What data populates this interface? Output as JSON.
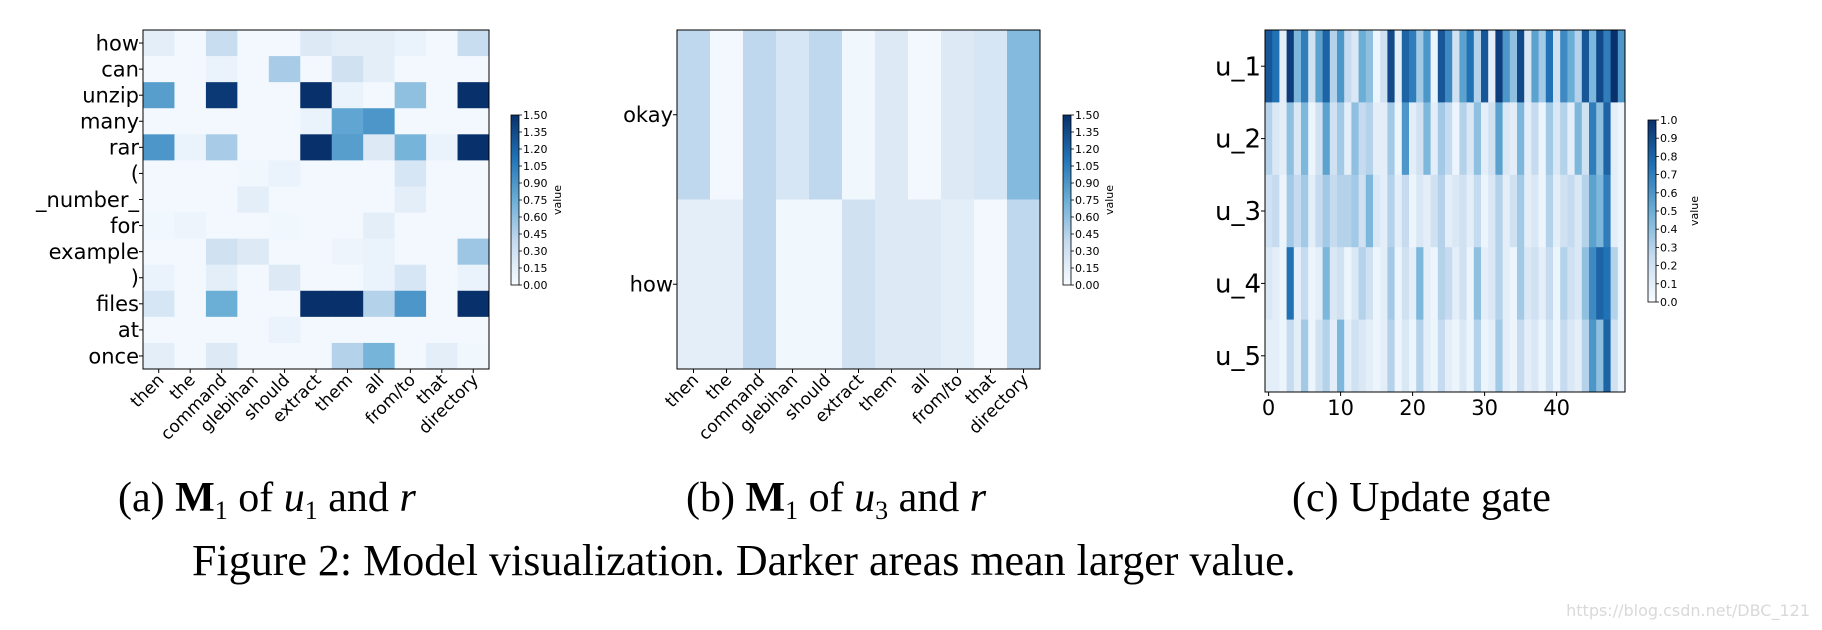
{
  "colors": {
    "low": "#f7fbff",
    "high": "#08306b"
  },
  "figure_caption": "Figure 2: Model visualization. Darker areas mean larger value.",
  "subcaptions": {
    "a": {
      "tag": "(a)",
      "M": "M",
      "sub1": "1",
      "of": "of",
      "u": "u",
      "sub2": "1",
      "and": "and",
      "r": "r"
    },
    "b": {
      "tag": "(b)",
      "M": "M",
      "sub1": "1",
      "of": "of",
      "u": "u",
      "sub2": "3",
      "and": "and",
      "r": "r"
    },
    "c": {
      "tag": "(c)",
      "text": "Update gate"
    }
  },
  "watermark": "https://blog.csdn.net/DBC_121",
  "chart_data": [
    {
      "type": "heatmap",
      "title": "",
      "rows": [
        "how",
        "can",
        "unzip",
        "many",
        "rar",
        "(",
        "_number_",
        "for",
        "example",
        ")",
        "files",
        "at",
        "once"
      ],
      "cols": [
        "then",
        "the",
        "command",
        "glebihan",
        "should",
        "extract",
        "them",
        "all",
        "from/to",
        "that",
        "directory"
      ],
      "values": [
        [
          0.15,
          0.03,
          0.35,
          0.03,
          0.03,
          0.2,
          0.15,
          0.15,
          0.1,
          0.03,
          0.35
        ],
        [
          0.03,
          0.03,
          0.1,
          0.03,
          0.5,
          0.03,
          0.3,
          0.15,
          0.03,
          0.03,
          0.03
        ],
        [
          0.85,
          0.03,
          1.45,
          0.03,
          0.03,
          1.5,
          0.1,
          0.03,
          0.6,
          0.03,
          1.5
        ],
        [
          0.03,
          0.03,
          0.03,
          0.03,
          0.03,
          0.1,
          0.8,
          0.9,
          0.03,
          0.03,
          0.03
        ],
        [
          0.9,
          0.1,
          0.5,
          0.03,
          0.03,
          1.5,
          0.85,
          0.2,
          0.7,
          0.1,
          1.5
        ],
        [
          0.03,
          0.03,
          0.03,
          0.05,
          0.1,
          0.03,
          0.03,
          0.03,
          0.25,
          0.03,
          0.03
        ],
        [
          0.03,
          0.03,
          0.03,
          0.15,
          0.03,
          0.03,
          0.03,
          0.03,
          0.15,
          0.03,
          0.03
        ],
        [
          0.05,
          0.08,
          0.03,
          0.03,
          0.05,
          0.03,
          0.03,
          0.15,
          0.03,
          0.03,
          0.03
        ],
        [
          0.03,
          0.03,
          0.3,
          0.2,
          0.03,
          0.03,
          0.08,
          0.1,
          0.03,
          0.03,
          0.55
        ],
        [
          0.1,
          0.03,
          0.15,
          0.03,
          0.2,
          0.03,
          0.03,
          0.1,
          0.25,
          0.03,
          0.1
        ],
        [
          0.25,
          0.03,
          0.75,
          0.03,
          0.03,
          1.5,
          1.5,
          0.45,
          0.9,
          0.03,
          1.5
        ],
        [
          0.03,
          0.03,
          0.03,
          0.03,
          0.1,
          0.03,
          0.03,
          0.03,
          0.03,
          0.03,
          0.03
        ],
        [
          0.15,
          0.03,
          0.2,
          0.03,
          0.03,
          0.03,
          0.45,
          0.7,
          0.03,
          0.15,
          0.05
        ]
      ],
      "colorbar": {
        "label": "value",
        "ticks": [
          "0.00",
          "0.15",
          "0.30",
          "0.45",
          "0.60",
          "0.75",
          "0.90",
          "1.05",
          "1.20",
          "1.35",
          "1.50"
        ],
        "min": 0,
        "max": 1.5
      }
    },
    {
      "type": "heatmap",
      "title": "",
      "rows": [
        "okay",
        "how"
      ],
      "cols": [
        "then",
        "the",
        "command",
        "glebihan",
        "should",
        "extract",
        "them",
        "all",
        "from/to",
        "that",
        "directory"
      ],
      "values": [
        [
          0.4,
          0.03,
          0.4,
          0.25,
          0.4,
          0.05,
          0.2,
          0.03,
          0.2,
          0.25,
          0.65
        ],
        [
          0.15,
          0.15,
          0.4,
          0.05,
          0.05,
          0.3,
          0.2,
          0.2,
          0.15,
          0.03,
          0.4
        ]
      ],
      "colorbar": {
        "label": "value",
        "ticks": [
          "0.00",
          "0.15",
          "0.30",
          "0.45",
          "0.60",
          "0.75",
          "0.90",
          "1.05",
          "1.20",
          "1.35",
          "1.50"
        ],
        "min": 0,
        "max": 1.5
      }
    },
    {
      "type": "heatmap",
      "title": "",
      "rows": [
        "u_1",
        "u_2",
        "u_3",
        "u_4",
        "u_5"
      ],
      "x_ticks": [
        "0",
        "10",
        "20",
        "30",
        "40"
      ],
      "n_cols": 50,
      "values": [
        [
          0.85,
          0.75,
          0.1,
          0.95,
          0.45,
          0.7,
          0.2,
          0.55,
          0.8,
          0.3,
          0.6,
          0.25,
          0.15,
          0.5,
          0.4,
          0.05,
          0.2,
          0.9,
          0.1,
          0.8,
          0.7,
          0.35,
          0.6,
          0.05,
          0.85,
          0.65,
          0.2,
          0.55,
          0.75,
          0.3,
          0.85,
          0.1,
          0.95,
          0.6,
          0.4,
          0.9,
          0.15,
          0.55,
          0.35,
          0.75,
          0.2,
          0.65,
          0.5,
          0.3,
          0.85,
          0.45,
          0.9,
          0.7,
          1.0,
          0.6
        ],
        [
          0.3,
          0.15,
          0.1,
          0.4,
          0.15,
          0.45,
          0.05,
          0.2,
          0.55,
          0.2,
          0.35,
          0.1,
          0.4,
          0.25,
          0.3,
          0.1,
          0.1,
          0.35,
          0.05,
          0.6,
          0.1,
          0.2,
          0.45,
          0.1,
          0.35,
          0.25,
          0.05,
          0.3,
          0.15,
          0.4,
          0.1,
          0.2,
          0.55,
          0.15,
          0.1,
          0.45,
          0.1,
          0.25,
          0.05,
          0.35,
          0.15,
          0.3,
          0.1,
          0.45,
          0.2,
          0.7,
          0.4,
          0.8,
          0.1,
          0.05
        ],
        [
          0.2,
          0.25,
          0.05,
          0.35,
          0.25,
          0.35,
          0.1,
          0.25,
          0.35,
          0.25,
          0.3,
          0.3,
          0.35,
          0.2,
          0.45,
          0.15,
          0.1,
          0.3,
          0.1,
          0.25,
          0.05,
          0.15,
          0.1,
          0.2,
          0.3,
          0.1,
          0.15,
          0.2,
          0.1,
          0.25,
          0.05,
          0.15,
          0.3,
          0.1,
          0.2,
          0.35,
          0.1,
          0.15,
          0.05,
          0.3,
          0.1,
          0.2,
          0.25,
          0.15,
          0.3,
          0.55,
          0.45,
          0.7,
          0.1,
          0.05
        ],
        [
          0.15,
          0.1,
          0.05,
          0.75,
          0.1,
          0.25,
          0.05,
          0.1,
          0.45,
          0.15,
          0.2,
          0.05,
          0.15,
          0.3,
          0.2,
          0.05,
          0.1,
          0.35,
          0.05,
          0.2,
          0.1,
          0.45,
          0.1,
          0.05,
          0.3,
          0.25,
          0.1,
          0.2,
          0.05,
          0.4,
          0.1,
          0.15,
          0.3,
          0.1,
          0.05,
          0.35,
          0.15,
          0.2,
          0.1,
          0.25,
          0.05,
          0.3,
          0.2,
          0.15,
          0.4,
          0.65,
          0.8,
          0.75,
          0.3,
          0.05
        ],
        [
          0.1,
          0.1,
          0.05,
          0.25,
          0.1,
          0.35,
          0.05,
          0.2,
          0.3,
          0.1,
          0.45,
          0.1,
          0.2,
          0.15,
          0.1,
          0.05,
          0.1,
          0.3,
          0.05,
          0.15,
          0.05,
          0.3,
          0.1,
          0.05,
          0.25,
          0.1,
          0.05,
          0.15,
          0.05,
          0.3,
          0.05,
          0.1,
          0.35,
          0.1,
          0.05,
          0.25,
          0.1,
          0.15,
          0.05,
          0.2,
          0.05,
          0.25,
          0.15,
          0.1,
          0.3,
          0.6,
          0.4,
          0.8,
          0.2,
          0.05
        ]
      ],
      "colorbar": {
        "label": "value",
        "ticks": [
          "0.0",
          "0.1",
          "0.2",
          "0.3",
          "0.4",
          "0.5",
          "0.6",
          "0.7",
          "0.8",
          "0.9",
          "1.0"
        ],
        "min": 0,
        "max": 1.0
      }
    }
  ]
}
